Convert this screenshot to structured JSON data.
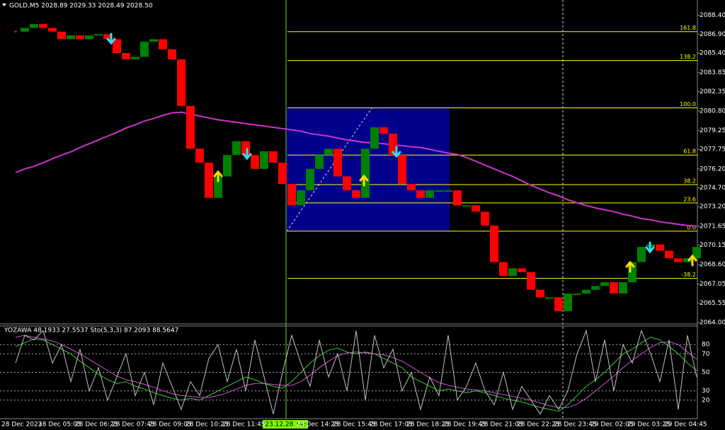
{
  "chart_data": {
    "type": "price-bars",
    "title": "GOLD,M5  2028.89 2029.33 2028.49 2028.50",
    "categories": [
      "28 Dec 2023",
      null,
      null,
      null,
      "28 Dec 05:05",
      null,
      null,
      null,
      "28 Dec 06:25",
      null,
      null,
      null,
      "28 Dec 07:45",
      null,
      null,
      null,
      "28 Dec 09:05",
      null,
      null,
      null,
      "28 Dec 10:25",
      null,
      null,
      null,
      "28 Dec 11:45",
      null,
      null,
      null,
      null,
      null,
      null,
      null,
      "28 Dec 14:25",
      null,
      null,
      null,
      "28 Dec 15:45",
      null,
      null,
      null,
      "28 Dec 17:05",
      null,
      null,
      null,
      "28 Dec 18:25",
      null,
      null,
      null,
      "28 Dec 19:45",
      null,
      null,
      null,
      "28 Dec 21:05",
      null,
      null,
      null,
      "28 Dec 22:25",
      null,
      null,
      null,
      "28 Dec 23:45",
      null,
      null,
      null,
      "29 Dec 02:05",
      null,
      null,
      null,
      "29 Dec 03:25",
      null,
      null,
      null,
      "29 Dec 04:45",
      null,
      null
    ],
    "values": [
      2087.1,
      2087.4,
      2087.7,
      2087.4,
      2087.1,
      2086.5,
      2086.8,
      2086.5,
      2086.8,
      2086.9,
      2086.5,
      2085.4,
      2084.9,
      2085.1,
      2086.3,
      2086.5,
      2085.7,
      2084.9,
      2081.2,
      2077.8,
      2076.7,
      2073.9,
      2075.6,
      2077.3,
      2078.4,
      2077.3,
      2076.2,
      2077.6,
      2076.7,
      2075.0,
      2073.3,
      2074.5,
      2076.2,
      2077.3,
      2077.8,
      2075.6,
      2074.5,
      2073.9,
      2077.8,
      2079.5,
      2079.0,
      2077.3,
      2075.0,
      2074.5,
      2073.9,
      2074.5,
      2074.5,
      2074.5,
      2073.3,
      2073.3,
      2072.8,
      2071.7,
      2068.8,
      2067.7,
      2068.3,
      2068.0,
      2066.6,
      2066.0,
      2066.0,
      2064.9,
      2066.3,
      2066.3,
      2066.6,
      2066.9,
      2067.2,
      2066.3,
      2067.2,
      2068.8,
      2070.0,
      2070.2,
      2069.7,
      2069.1,
      2068.8,
      2069.1,
      2070.0
    ],
    "up_color": "#008000",
    "down_color": "#ff0000",
    "ylim": [
      2064.0,
      2089.5
    ],
    "yticks": [
      {
        "value": 2088.4,
        "label": "2088.40"
      },
      {
        "value": 2086.9,
        "label": "2086.90"
      },
      {
        "value": 2085.4,
        "label": "2085.40"
      },
      {
        "value": 2083.85,
        "label": "2083.85"
      },
      {
        "value": 2082.35,
        "label": "2082.35"
      },
      {
        "value": 2080.8,
        "label": "2080.80"
      },
      {
        "value": 2079.25,
        "label": "2079.25"
      },
      {
        "value": 2077.75,
        "label": "2077.75"
      },
      {
        "value": 2076.2,
        "label": "2076.20"
      },
      {
        "value": 2074.7,
        "label": "2074.70"
      },
      {
        "value": 2073.2,
        "label": "2073.20"
      },
      {
        "value": 2071.65,
        "label": "2071.65"
      },
      {
        "value": 2070.15,
        "label": "2070.15"
      },
      {
        "value": 2068.6,
        "label": "2068.60"
      },
      {
        "value": 2067.05,
        "label": "2067.05"
      },
      {
        "value": 2065.55,
        "label": "2065.55"
      },
      {
        "value": 2064.0,
        "label": "2064.00"
      }
    ],
    "moving_average": {
      "color": "#cc33cc",
      "values": [
        2075.9,
        2076.2,
        2076.4,
        2076.7,
        2077.0,
        2077.3,
        2077.55,
        2077.9,
        2078.2,
        2078.5,
        2078.8,
        2079.1,
        2079.45,
        2079.7,
        2080.0,
        2080.2,
        2080.45,
        2080.65,
        2080.7,
        2080.55,
        2080.4,
        2080.25,
        2080.1,
        2080.0,
        2079.9,
        2079.8,
        2079.7,
        2079.6,
        2079.5,
        2079.4,
        2079.3,
        2079.2,
        2079.0,
        2078.9,
        2078.8,
        2078.65,
        2078.5,
        2078.4,
        2078.3,
        2078.25,
        2078.2,
        2078.1,
        2078.05,
        2077.95,
        2077.9,
        2077.75,
        2077.6,
        2077.45,
        2077.35,
        2077.1,
        2076.8,
        2076.5,
        2076.2,
        2075.9,
        2075.6,
        2075.25,
        2074.9,
        2074.6,
        2074.3,
        2074.05,
        2073.75,
        2073.5,
        2073.3,
        2073.1,
        2072.95,
        2072.8,
        2072.6,
        2072.45,
        2072.25,
        2072.15,
        2072.0,
        2071.9,
        2071.8,
        2071.7,
        2071.65
      ]
    },
    "fibonacci": {
      "color": "#ffff00",
      "levels": [
        {
          "label": "161.8",
          "value": 2087.1
        },
        {
          "label": "138.2",
          "value": 2084.8
        },
        {
          "label": "100.0",
          "value": 2081.05
        },
        {
          "label": "61.8",
          "value": 2077.3
        },
        {
          "label": "38.2",
          "value": 2074.95
        },
        {
          "label": "23.6",
          "value": 2073.5
        },
        {
          "label": "0.0",
          "value": 2071.25
        },
        {
          "label": "-38.2",
          "value": 2067.5
        }
      ]
    },
    "cursor_label": "2023.12.28 14:00",
    "indicator": {
      "title": "YOZAWA 48.1933 27.5537  Sto(5,3,3) 87.2093 88.5647",
      "ylim": [
        0,
        100
      ],
      "yticks": [
        80,
        70,
        50,
        30,
        20
      ],
      "series": [
        {
          "color": "#33cc33",
          "values": [
            78,
            82,
            86,
            85,
            80,
            75,
            70,
            62,
            55,
            48,
            42,
            38,
            40,
            35,
            32,
            28,
            25,
            22,
            20,
            22,
            20,
            25,
            30,
            35,
            40,
            45,
            42,
            38,
            35,
            33,
            40,
            50,
            60,
            68,
            74,
            76,
            72,
            70,
            72,
            70,
            65,
            60,
            55,
            45,
            40,
            35,
            30,
            32,
            30,
            28,
            30,
            28,
            25,
            22,
            20,
            18,
            15,
            12,
            10,
            8,
            15,
            25,
            35,
            42,
            50,
            60,
            70,
            75,
            82,
            88,
            85,
            78,
            70,
            60,
            52
          ]
        },
        {
          "color": "#cc55cc",
          "values": [
            88,
            90,
            88,
            86,
            84,
            80,
            75,
            70,
            64,
            58,
            52,
            46,
            42,
            40,
            37,
            34,
            30,
            27,
            25,
            24,
            23,
            23,
            25,
            28,
            32,
            36,
            38,
            38,
            37,
            36,
            36,
            40,
            47,
            55,
            62,
            68,
            71,
            72,
            71,
            70,
            69,
            66,
            62,
            56,
            50,
            44,
            39,
            36,
            34,
            32,
            31,
            30,
            28,
            26,
            24,
            22,
            20,
            17,
            14,
            12,
            12,
            16,
            22,
            30,
            38,
            46,
            55,
            63,
            70,
            77,
            82,
            83,
            80,
            72,
            64
          ]
        },
        {
          "color": "#c0c0c0",
          "values": [
            60,
            90,
            85,
            95,
            60,
            80,
            40,
            75,
            30,
            55,
            20,
            45,
            70,
            25,
            50,
            15,
            60,
            35,
            10,
            40,
            25,
            65,
            80,
            40,
            75,
            30,
            85,
            45,
            5,
            50,
            90,
            60,
            35,
            85,
            45,
            70,
            30,
            95,
            20,
            90,
            55,
            75,
            30,
            50,
            10,
            45,
            25,
            90,
            20,
            35,
            60,
            30,
            15,
            50,
            10,
            35,
            20,
            5,
            25,
            10,
            30,
            70,
            95,
            40,
            85,
            30,
            80,
            60,
            95,
            70,
            40,
            85,
            10,
            90,
            45
          ]
        }
      ]
    }
  }
}
